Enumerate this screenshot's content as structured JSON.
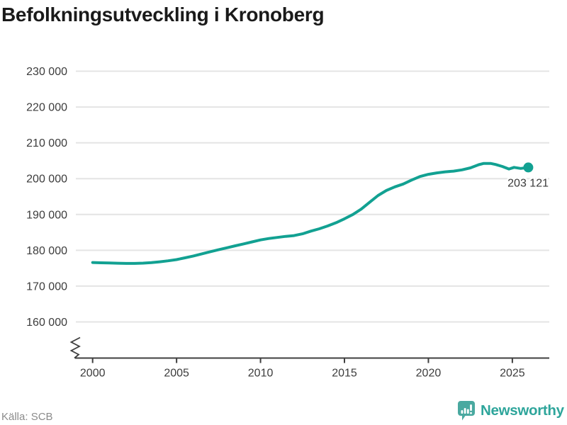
{
  "page": {
    "title": "Befolkningsutveckling i Kronoberg",
    "source": "Källa: SCB"
  },
  "branding": {
    "name": "Newsworthy",
    "icon": "newsworthy-speech-bubble-chart-icon"
  },
  "colors": {
    "line": "#12a192",
    "marker": "#12a192",
    "grid": "#e4e4e4",
    "axis": "#3f3f3f",
    "title_text": "#1a1a1a",
    "tick_text": "#3c3c3c",
    "annotation_text": "#3a3a3a",
    "source_text": "#8b8b8b",
    "brand_teal": "#2ea59b",
    "brand_icon_teal": "#4aa9a0",
    "background": "#ffffff"
  },
  "chart_data": {
    "type": "line",
    "title": "Befolkningsutveckling i Kronoberg",
    "xlabel": "",
    "ylabel": "",
    "legend": "none",
    "grid": "horizontal",
    "x_ticks": [
      2000,
      2005,
      2010,
      2015,
      2020,
      2025
    ],
    "y_ticks": [
      {
        "value": 230000,
        "label": "230 000"
      },
      {
        "value": 220000,
        "label": "220 000"
      },
      {
        "value": 210000,
        "label": "210 000"
      },
      {
        "value": 200000,
        "label": "200 000"
      },
      {
        "value": 190000,
        "label": "190 000"
      },
      {
        "value": 180000,
        "label": "180 000"
      },
      {
        "value": 170000,
        "label": "170 000"
      },
      {
        "value": 160000,
        "label": "160 000"
      }
    ],
    "xlim": [
      1999,
      2027.2
    ],
    "ylim": [
      160000,
      230000
    ],
    "y_axis_break": true,
    "series": [
      {
        "name": "",
        "points": [
          [
            2000.0,
            176600
          ],
          [
            2000.5,
            176520
          ],
          [
            2001.0,
            176470
          ],
          [
            2001.5,
            176400
          ],
          [
            2002.0,
            176330
          ],
          [
            2002.5,
            176330
          ],
          [
            2003.0,
            176420
          ],
          [
            2003.5,
            176560
          ],
          [
            2004.0,
            176780
          ],
          [
            2004.5,
            177060
          ],
          [
            2005.0,
            177400
          ],
          [
            2005.5,
            177900
          ],
          [
            2006.0,
            178400
          ],
          [
            2006.5,
            179000
          ],
          [
            2007.0,
            179600
          ],
          [
            2007.5,
            180150
          ],
          [
            2008.0,
            180700
          ],
          [
            2008.5,
            181250
          ],
          [
            2009.0,
            181800
          ],
          [
            2009.5,
            182350
          ],
          [
            2010.0,
            182900
          ],
          [
            2010.5,
            183300
          ],
          [
            2011.0,
            183600
          ],
          [
            2011.5,
            183880
          ],
          [
            2012.0,
            184100
          ],
          [
            2012.5,
            184600
          ],
          [
            2013.0,
            185350
          ],
          [
            2013.5,
            186000
          ],
          [
            2014.0,
            186800
          ],
          [
            2014.5,
            187700
          ],
          [
            2015.0,
            188800
          ],
          [
            2015.5,
            190000
          ],
          [
            2016.0,
            191500
          ],
          [
            2016.5,
            193400
          ],
          [
            2017.0,
            195300
          ],
          [
            2017.5,
            196700
          ],
          [
            2018.0,
            197700
          ],
          [
            2018.5,
            198500
          ],
          [
            2019.0,
            199600
          ],
          [
            2019.5,
            200600
          ],
          [
            2020.0,
            201200
          ],
          [
            2020.5,
            201600
          ],
          [
            2021.0,
            201900
          ],
          [
            2021.5,
            202100
          ],
          [
            2022.0,
            202450
          ],
          [
            2022.5,
            203000
          ],
          [
            2023.0,
            203900
          ],
          [
            2023.3,
            204250
          ],
          [
            2023.7,
            204250
          ],
          [
            2024.0,
            203950
          ],
          [
            2024.4,
            203400
          ],
          [
            2024.8,
            202700
          ],
          [
            2025.1,
            203150
          ],
          [
            2025.5,
            202850
          ],
          [
            2025.95,
            203121
          ]
        ]
      }
    ],
    "last_point": {
      "x": 2025.95,
      "y": 203121,
      "label": "203 121"
    }
  }
}
